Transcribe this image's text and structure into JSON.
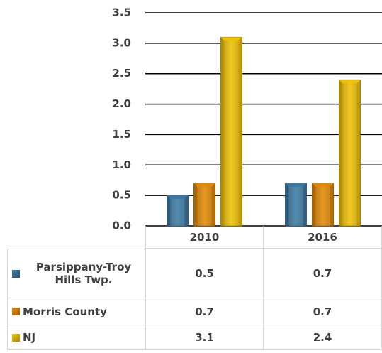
{
  "chart_data": {
    "type": "bar",
    "categories": [
      "2010",
      "2016"
    ],
    "series": [
      {
        "name": "Parsippany-Troy Hills Twp.",
        "color": "#3b7ba6",
        "values": [
          0.5,
          0.7
        ]
      },
      {
        "name": "Morris County",
        "color": "#e58a00",
        "values": [
          0.7,
          0.7
        ]
      },
      {
        "name": "NJ",
        "color": "#f2c200",
        "values": [
          3.1,
          2.4
        ]
      }
    ],
    "ylim": [
      0,
      3.5
    ],
    "yticks": [
      {
        "value": 0,
        "label": "0.0"
      },
      0.5,
      {
        "value": 1,
        "label": "1.0"
      },
      1.5,
      {
        "value": 2,
        "label": "2.0"
      },
      2.5,
      {
        "value": 3,
        "label": "3.0"
      },
      3.5
    ],
    "grid": true,
    "legend": "table"
  }
}
